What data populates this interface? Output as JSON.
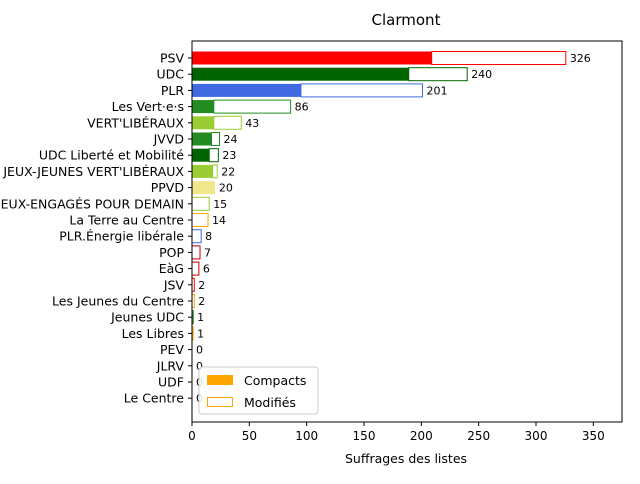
{
  "chart_data": {
    "type": "bar",
    "orientation": "horizontal",
    "title": "Clarmont",
    "xlabel": "Suffrages des listes",
    "ylabel": "",
    "xlim": [
      0,
      375
    ],
    "xticks": [
      0,
      50,
      100,
      150,
      200,
      250,
      300,
      350
    ],
    "legend": {
      "position": "lower-left",
      "entries": [
        {
          "label": "Compacts",
          "style": "filled",
          "color": "#ffa500"
        },
        {
          "label": "Modifiés",
          "style": "outline",
          "color": "#ffa500"
        }
      ]
    },
    "categories": [
      "PSV",
      "UDC",
      "PLR",
      "Les Vert·e·s",
      "VERT'LIBÉRAUX",
      "JVVD",
      "UDC Liberté et Mobilité",
      "JEUX-JEUNES VERT'LIBÉRAUX",
      "PPVD",
      "JEUX-ENGAGÉS POUR DEMAIN",
      "La Terre au Centre",
      "PLR.Énergie libérale",
      "POP",
      "EàG",
      "JSV",
      "Les Jeunes du Centre",
      "Jeunes UDC",
      "Les Libres",
      "PEV",
      "JLRV",
      "UDF",
      "Le Centre"
    ],
    "colors": [
      "#ff0000",
      "#006400",
      "#4169e1",
      "#228b22",
      "#9acd32",
      "#228b22",
      "#006400",
      "#9acd32",
      "#f0e68c",
      "#9acd32",
      "#ffa500",
      "#4169e1",
      "#c00000",
      "#c00000",
      "#ff0000",
      "#ffa500",
      "#006400",
      "#ffa500",
      "#ffd700",
      "#4169e1",
      "#8b0000",
      "#ffa500"
    ],
    "series": [
      {
        "name": "Compacts",
        "values": [
          209,
          189,
          95,
          19,
          19,
          17,
          15,
          18,
          20,
          0,
          0,
          0,
          0,
          0,
          0,
          0,
          0,
          0,
          0,
          0,
          0,
          0
        ]
      },
      {
        "name": "Modifiés",
        "values": [
          117,
          51,
          106,
          67,
          24,
          7,
          8,
          4,
          0,
          15,
          14,
          8,
          7,
          6,
          2,
          2,
          1,
          1,
          0,
          0,
          0,
          0
        ]
      }
    ],
    "totals": [
      326,
      240,
      201,
      86,
      43,
      24,
      23,
      22,
      20,
      15,
      14,
      8,
      7,
      6,
      2,
      2,
      1,
      1,
      0,
      0,
      0,
      0
    ]
  }
}
